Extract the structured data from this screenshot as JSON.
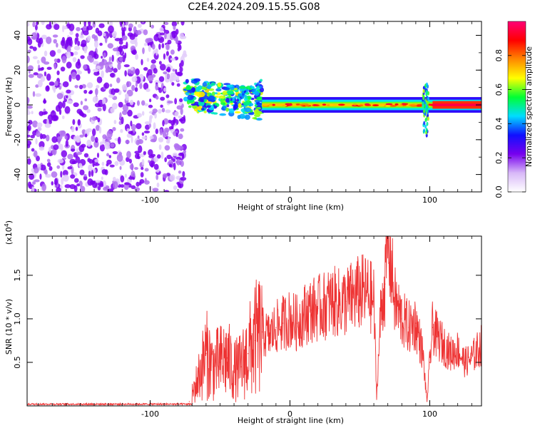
{
  "title": "C2E4.2024.209.15.55.G08",
  "chart_data": [
    {
      "type": "heatmap",
      "xlabel": "Height of straight line (km)",
      "ylabel": "Frequency (Hz)",
      "xlim": [
        -188,
        137
      ],
      "ylim": [
        -50,
        48
      ],
      "xticks": [
        -100,
        0,
        100
      ],
      "yticks": [
        -40,
        -20,
        0,
        20,
        40
      ],
      "colorbar": {
        "label": "Normalized spectral amplitude",
        "range": [
          0,
          1
        ],
        "ticks": [
          0.0,
          0.2,
          0.4,
          0.6,
          0.8
        ],
        "colors": [
          "#ffffff",
          "#d8b8f8",
          "#7700ee",
          "#1010ff",
          "#00ddff",
          "#00ff33",
          "#ffff00",
          "#ff8800",
          "#ff0000",
          "#ff0077"
        ]
      },
      "regions": [
        {
          "name": "noise",
          "x": [
            -188,
            -75
          ],
          "y": [
            -50,
            48
          ],
          "level": 0.25
        },
        {
          "name": "onset",
          "x": [
            -75,
            -20
          ],
          "y": [
            -12,
            12
          ],
          "level": 0.4
        },
        {
          "name": "carrier",
          "x": [
            -20,
            137
          ],
          "y": [
            -3,
            3
          ],
          "level": 0.9
        }
      ]
    },
    {
      "type": "line",
      "xlabel": "Height of straight line (km)",
      "ylabel": "SNR (10 * v/v)",
      "ylabel_scale": "(x10",
      "ylabel_scale_exp": "4",
      "ylabel_scale_close": ")",
      "xlim": [
        -188,
        137
      ],
      "ylim": [
        0,
        1.95
      ],
      "xticks": [
        -100,
        0,
        100
      ],
      "yticks": [
        0.5,
        1.0,
        1.5
      ],
      "ytick_labels": [
        "0.5",
        "1.0",
        "1.5"
      ],
      "series": [
        {
          "color": "#ee3333",
          "x": [
            -188,
            -150,
            -100,
            -80,
            -72,
            -66,
            -60,
            -55,
            -50,
            -45,
            -40,
            -35,
            -30,
            -25,
            -20,
            -15,
            -10,
            -5,
            0,
            5,
            10,
            15,
            20,
            25,
            30,
            35,
            40,
            45,
            50,
            55,
            60,
            62,
            65,
            68,
            70,
            75,
            80,
            85,
            90,
            95,
            98,
            100,
            102,
            105,
            110,
            115,
            120,
            125,
            130,
            137
          ],
          "y": [
            0.02,
            0.02,
            0.02,
            0.02,
            0.05,
            0.3,
            0.6,
            0.45,
            0.5,
            0.55,
            0.4,
            0.45,
            0.6,
            0.75,
            0.85,
            0.8,
            0.9,
            0.95,
            1.0,
            0.95,
            1.05,
            1.1,
            1.12,
            1.15,
            1.2,
            1.18,
            1.2,
            1.25,
            1.3,
            1.3,
            1.2,
            0.1,
            1.1,
            1.4,
            1.95,
            1.2,
            1.0,
            0.9,
            0.95,
            0.6,
            0.05,
            0.5,
            0.9,
            0.8,
            0.7,
            0.6,
            0.65,
            0.5,
            0.55,
            0.7
          ]
        }
      ]
    }
  ]
}
